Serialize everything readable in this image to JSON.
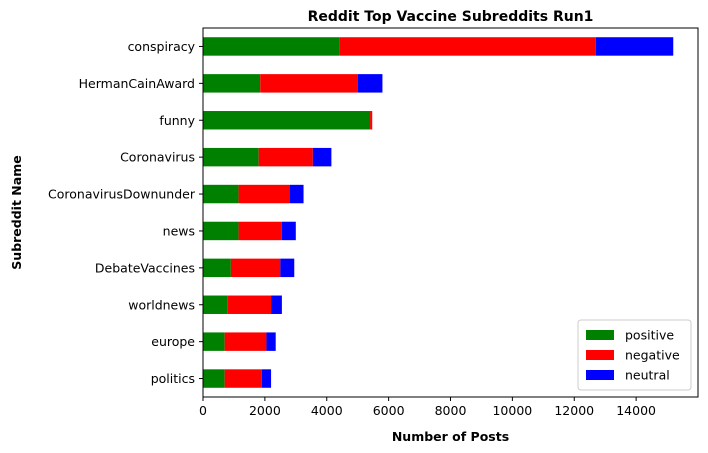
{
  "chart_data": {
    "type": "bar",
    "orientation": "horizontal",
    "stacked": true,
    "title": "Reddit Top Vaccine Subreddits Run1",
    "xlabel": "Number of Posts",
    "ylabel": "Subreddit Name",
    "categories": [
      "conspiracy",
      "HermanCainAward",
      "funny",
      "Coronavirus",
      "CoronavirusDownunder",
      "news",
      "DebateVaccines",
      "worldnews",
      "europe",
      "politics"
    ],
    "series": [
      {
        "name": "positive",
        "color": "#008000",
        "values": [
          4400,
          1850,
          5400,
          1800,
          1150,
          1150,
          900,
          800,
          700,
          700
        ]
      },
      {
        "name": "negative",
        "color": "#ff0000",
        "values": [
          8300,
          3150,
          70,
          1750,
          1650,
          1400,
          1600,
          1400,
          1350,
          1200
        ]
      },
      {
        "name": "neutral",
        "color": "#0000ff",
        "values": [
          2500,
          800,
          0,
          600,
          450,
          450,
          450,
          350,
          300,
          300
        ]
      }
    ],
    "xlim": [
      0,
      16000
    ],
    "xticks": [
      0,
      2000,
      4000,
      6000,
      8000,
      10000,
      12000,
      14000
    ],
    "grid": false,
    "legend_position": "lower-right"
  }
}
